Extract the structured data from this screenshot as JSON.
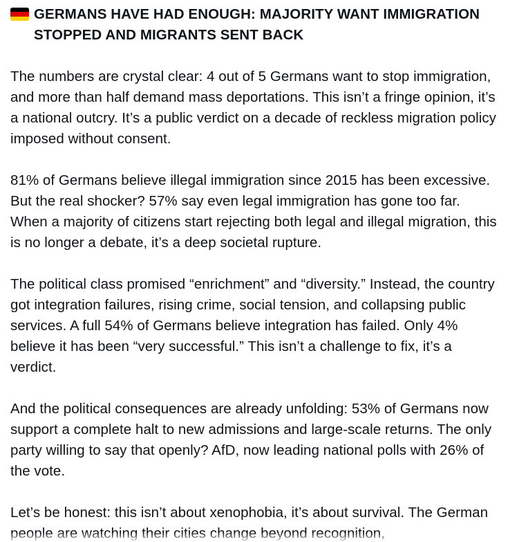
{
  "post": {
    "flag_icon": "germany-flag-icon",
    "flag_colors": [
      "#000000",
      "#dd0000",
      "#ffce00"
    ],
    "headline": "GERMANS HAVE HAD ENOUGH: MAJORITY WANT IMMIGRATION STOPPED AND MIGRANTS SENT BACK",
    "paragraphs": [
      "The numbers are crystal clear: 4 out of 5 Germans want to stop immigration, and more than half demand mass deportations. This isn’t a fringe opinion, it’s a national outcry. It’s a public verdict on a decade of reckless migration policy imposed without consent.",
      "81% of Germans believe illegal immigration since 2015 has been excessive. But the real shocker? 57% say even legal immigration has gone too far. When a majority of citizens start rejecting both legal and illegal migration, this is no longer a debate, it’s a deep societal rupture.",
      "The political class promised “enrichment” and “diversity.” Instead, the country got integration failures, rising crime, social tension, and collapsing public services. A full 54% of Germans believe integration has failed. Only 4% believe it has been “very successful.” This isn’t a challenge to fix, it’s a verdict.",
      "And the political consequences are already unfolding: 53% of Germans now support a complete halt to new admissions and large-scale returns. The only party willing to say that openly? AfD, now leading national polls with 26% of the vote.",
      "Let’s be honest: this isn’t about xenophobia, it’s about survival. The German people are watching their cities change beyond recognition,"
    ]
  }
}
